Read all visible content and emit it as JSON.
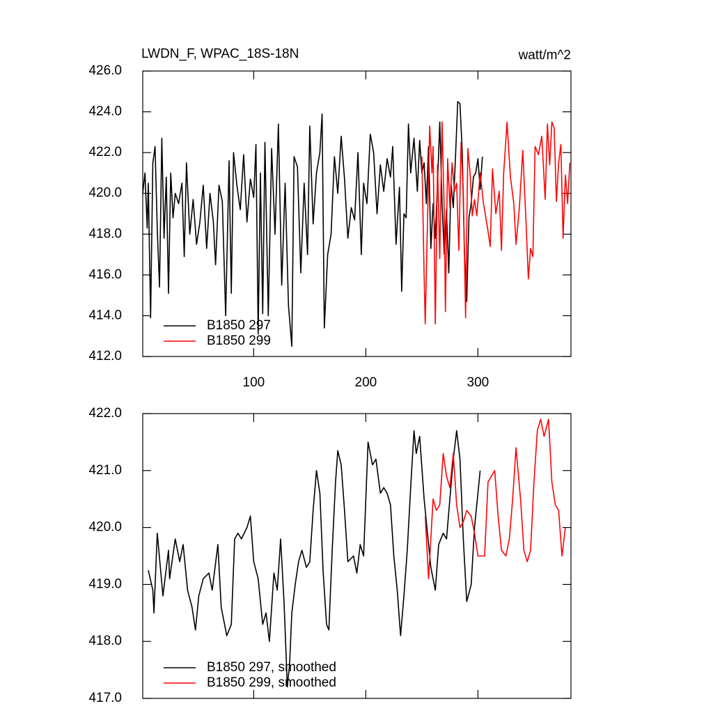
{
  "chart_data": [
    {
      "type": "line",
      "title": "LWDN_F, WPAC_18S-18N",
      "units": "watt/m^2",
      "xlim": [
        1,
        383
      ],
      "ylim": [
        412,
        426
      ],
      "xticks": [
        100,
        200,
        300
      ],
      "xtick_labels": true,
      "yticks": [
        {
          "value": 412,
          "label": "412.0"
        },
        {
          "value": 414,
          "label": "414.0"
        },
        {
          "value": 416,
          "label": "416.0"
        },
        {
          "value": 418,
          "label": "418.0"
        },
        {
          "value": 420,
          "label": "420.0"
        },
        {
          "value": 422,
          "label": "422.0"
        },
        {
          "value": 424,
          "label": "424.0"
        },
        {
          "value": 426,
          "label": "426.0"
        }
      ],
      "legend": "lower left",
      "series": [
        {
          "name": "B1850 297",
          "color": "#000000",
          "x": [
            1,
            3,
            5,
            6,
            8,
            10,
            12,
            14,
            16,
            18,
            20,
            22,
            24,
            26,
            28,
            30,
            33,
            36,
            38,
            40,
            43,
            46,
            49,
            52,
            55,
            58,
            61,
            64,
            66,
            69,
            72,
            75,
            78,
            80,
            82,
            85,
            88,
            91,
            94,
            97,
            100,
            102,
            104,
            106,
            108,
            110,
            113,
            116,
            119,
            122,
            125,
            128,
            131,
            134,
            136,
            139,
            142,
            145,
            148,
            150,
            153,
            156,
            159,
            161,
            163,
            166,
            169,
            172,
            175,
            178,
            181,
            184,
            187,
            190,
            193,
            196,
            198,
            201,
            204,
            207,
            210,
            213,
            216,
            219,
            222,
            224,
            227,
            230,
            232,
            234,
            236,
            238,
            240,
            243,
            246,
            248,
            250,
            252,
            254,
            256,
            258,
            260,
            262,
            264,
            266,
            268,
            270,
            272,
            274,
            276,
            278,
            280,
            282,
            284,
            286,
            288,
            290,
            292,
            294,
            296,
            298,
            300,
            302,
            304
          ],
          "values": [
            420,
            421,
            418.3,
            420.5,
            413.9,
            421.5,
            422.3,
            418.2,
            415.4,
            422.7,
            417.8,
            420.8,
            415.1,
            421,
            418.8,
            420,
            419.5,
            420.5,
            416.9,
            421.5,
            418,
            419.7,
            417.5,
            418.6,
            420.4,
            417.3,
            420,
            418.6,
            416.5,
            420.4,
            419.6,
            414,
            421.6,
            415.1,
            422,
            420.4,
            419.2,
            421.9,
            418.6,
            420.7,
            419.8,
            422.4,
            413.1,
            421,
            414.1,
            422.5,
            414,
            422.2,
            418,
            423.4,
            415.5,
            420.5,
            414.5,
            412.5,
            421.8,
            421.3,
            416.1,
            420.5,
            417,
            423.3,
            418.5,
            421,
            422,
            423.9,
            413.4,
            417,
            418,
            421.8,
            420,
            422.8,
            420.7,
            417.8,
            419.3,
            418.7,
            422,
            417,
            420.5,
            419.5,
            422.9,
            422,
            419,
            421.4,
            420.1,
            421.7,
            420.8,
            422.3,
            417.5,
            420.3,
            415.2,
            419,
            418.8,
            423.4,
            421,
            422.7,
            420.1,
            422.6,
            421,
            421.5,
            419.5,
            422.3,
            417.3,
            419.5,
            417.8,
            420.5,
            423.5,
            419.5,
            417,
            419.2,
            416.1,
            420.5,
            419.3,
            421.8,
            424.5,
            424.4,
            422.1,
            417,
            414.7,
            418.8,
            419.5,
            420.8,
            421,
            421.7,
            420.2,
            421.8
          ]
        },
        {
          "name": "B1850 299",
          "color": "#ff0000",
          "x": [
            250,
            252,
            253,
            255,
            257,
            259,
            260,
            262,
            264,
            266,
            268,
            270,
            271,
            273,
            275,
            277,
            279,
            281,
            283,
            285,
            287,
            289,
            291,
            293,
            295,
            297,
            299,
            302,
            305,
            308,
            311,
            313,
            316,
            319,
            321,
            323,
            326,
            329,
            332,
            334,
            337,
            340,
            343,
            345,
            347,
            349,
            351,
            354,
            357,
            360,
            362,
            364,
            366,
            368,
            370,
            372,
            374,
            376,
            378,
            380,
            382
          ],
          "values": [
            421.8,
            416,
            413.6,
            418.5,
            423.3,
            421,
            422.3,
            413.6,
            421.4,
            416.8,
            423.5,
            419,
            414.2,
            421.7,
            419.3,
            421.5,
            420.1,
            420.5,
            417.2,
            422.5,
            420,
            413.9,
            422.2,
            421,
            418.9,
            419.7,
            418.9,
            421,
            419.5,
            418.5,
            417.4,
            421.2,
            419,
            420.1,
            417.2,
            421,
            423.5,
            420.8,
            419.5,
            417.5,
            419.3,
            422.1,
            418.5,
            415.8,
            417.3,
            416.9,
            422.3,
            421.9,
            422.8,
            419.7,
            423.4,
            421.4,
            423.5,
            423.2,
            419.6,
            421.5,
            422.4,
            417.8,
            420.9,
            419.5,
            421.5
          ]
        }
      ]
    },
    {
      "type": "line",
      "xlim": [
        1,
        383
      ],
      "ylim": [
        417,
        422
      ],
      "xticks": [
        100,
        200,
        300
      ],
      "xtick_labels": false,
      "yticks": [
        {
          "value": 417,
          "label": "417.0"
        },
        {
          "value": 418,
          "label": "418.0"
        },
        {
          "value": 419,
          "label": "419.0"
        },
        {
          "value": 420,
          "label": "420.0"
        },
        {
          "value": 421,
          "label": "421.0"
        },
        {
          "value": 422,
          "label": "422.0"
        }
      ],
      "legend": "lower left",
      "series": [
        {
          "name": "B1850 297, smoothed",
          "color": "#000000",
          "x": [
            6,
            10,
            11,
            14,
            19,
            24,
            25,
            30,
            34,
            37,
            41,
            45,
            48,
            51,
            55,
            60,
            63,
            68,
            71,
            76,
            80,
            83,
            86,
            89,
            94,
            97,
            100,
            104,
            108,
            111,
            114,
            118,
            121,
            124,
            127,
            130,
            132,
            134,
            137,
            140,
            143,
            147,
            150,
            153,
            156,
            159,
            162,
            165,
            167,
            170,
            173,
            175,
            178,
            181,
            184,
            189,
            192,
            195,
            198,
            202,
            206,
            209,
            213,
            216,
            219,
            222,
            225,
            228,
            231,
            234,
            237,
            240,
            243,
            245,
            248,
            252,
            255,
            258,
            262,
            265,
            269,
            272,
            275,
            278,
            281,
            284,
            287,
            290,
            294,
            297,
            300,
            302
          ],
          "values": [
            419.25,
            418.9,
            418.5,
            419.9,
            418.8,
            419.6,
            419.1,
            419.8,
            419.4,
            419.7,
            418.9,
            418.6,
            418.2,
            418.8,
            419.1,
            419.2,
            418.9,
            419.7,
            418.6,
            418.1,
            418.3,
            419.8,
            419.9,
            419.8,
            420,
            420.2,
            419.4,
            419.1,
            418.3,
            418.5,
            418,
            419.2,
            418.9,
            419.8,
            418.7,
            417.2,
            417.6,
            418.5,
            419,
            419.4,
            419.6,
            419.3,
            419.4,
            420.3,
            421,
            420.6,
            419.2,
            418.3,
            418.2,
            419.6,
            420.8,
            421.35,
            421.1,
            420.3,
            419.4,
            419.5,
            419.2,
            419.7,
            419.5,
            421.5,
            421.1,
            421.2,
            420.6,
            420.7,
            420.6,
            420.4,
            419.5,
            418.9,
            418.1,
            418.8,
            419.6,
            420.7,
            421.7,
            421.3,
            421.6,
            420.5,
            419.9,
            419.3,
            418.9,
            419.7,
            419.9,
            419.8,
            420.5,
            421.2,
            421.7,
            421.2,
            419.8,
            418.7,
            419,
            420,
            420.6,
            421
          ]
        },
        {
          "name": "B1850 299, smoothed",
          "color": "#ff0000",
          "x": [
            253,
            256,
            260,
            263,
            266,
            269,
            272,
            275,
            278,
            281,
            284,
            287,
            290,
            294,
            297,
            300,
            303,
            306,
            309,
            312,
            315,
            318,
            321,
            325,
            328,
            331,
            334,
            338,
            341,
            344,
            347,
            350,
            353,
            356,
            359,
            363,
            366,
            369,
            372,
            375,
            378
          ],
          "values": [
            420.2,
            419.1,
            420.5,
            420.3,
            420.4,
            421.3,
            420.9,
            420.7,
            421.3,
            420.4,
            420,
            420.1,
            420.3,
            420.2,
            419.9,
            419.5,
            419.5,
            419.5,
            420.8,
            420.9,
            421,
            420.2,
            419.6,
            419.5,
            419.8,
            420.5,
            421.4,
            420.5,
            419.6,
            419.4,
            419.6,
            420.8,
            421.7,
            421.9,
            421.6,
            421.9,
            420.8,
            420.4,
            420.3,
            419.5,
            420
          ]
        }
      ]
    }
  ]
}
